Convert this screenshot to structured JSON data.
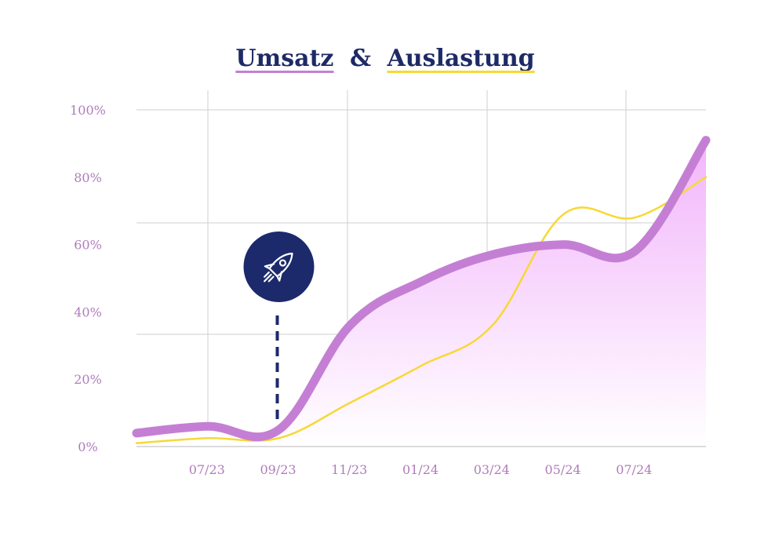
{
  "title": {
    "part1": "Umsatz",
    "amp": "&",
    "part2": "Auslastung"
  },
  "colors": {
    "title_text": "#1e2a66",
    "umsatz_line": "#c47fd4",
    "umsatz_fill_top": "#f2b5fb",
    "auslastung_line": "#f7d836",
    "axis_labels": "#b07cbc",
    "grid": "#cfcfcf",
    "marker_circle": "#1c2a6b",
    "marker_line": "#1c2a6b",
    "rocket_icon": "#ffffff"
  },
  "chart_data": {
    "type": "area",
    "x_tick_labels": [
      "07/23",
      "09/23",
      "11/23",
      "01/24",
      "03/24",
      "05/24",
      "07/24"
    ],
    "y_tick_labels": [
      "0%",
      "20%",
      "40%",
      "60%",
      "80%",
      "100%"
    ],
    "ylim": [
      0,
      100
    ],
    "x_range": [
      "05/23",
      "09/24"
    ],
    "grid": true,
    "series": [
      {
        "style": "area-thick-line",
        "points": [
          {
            "x": "05/23",
            "y": 4
          },
          {
            "x": "07/23",
            "y": 6
          },
          {
            "x": "09/23",
            "y": 5
          },
          {
            "x": "11/23",
            "y": 36
          },
          {
            "x": "01/24",
            "y": 49
          },
          {
            "x": "03/24",
            "y": 57
          },
          {
            "x": "05/24",
            "y": 60
          },
          {
            "x": "07/24",
            "y": 58
          },
          {
            "x": "09/24",
            "y": 91
          }
        ]
      },
      {
        "style": "thin-line",
        "points": [
          {
            "x": "05/23",
            "y": 1
          },
          {
            "x": "07/23",
            "y": 2.5
          },
          {
            "x": "09/23",
            "y": 2.5
          },
          {
            "x": "11/23",
            "y": 13
          },
          {
            "x": "01/24",
            "y": 24
          },
          {
            "x": "03/24",
            "y": 36
          },
          {
            "x": "05/24",
            "y": 69
          },
          {
            "x": "07/24",
            "y": 68
          },
          {
            "x": "09/24",
            "y": 80
          }
        ]
      }
    ],
    "annotation": {
      "x": "09/23",
      "icon": "rocket-icon",
      "style": "dashed-vertical-line"
    }
  }
}
